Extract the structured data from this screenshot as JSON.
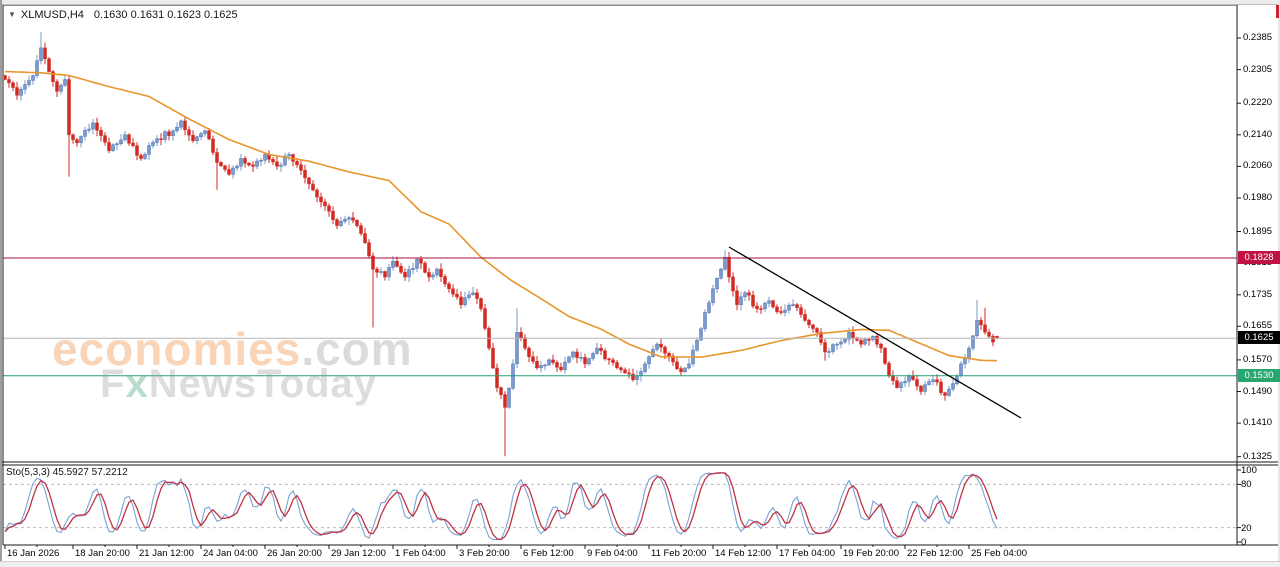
{
  "window": {
    "dropdown_marker": "▼",
    "title_symbol": "XLMUSD,H4",
    "title_quotes": "0.1630 0.1631 0.1623 0.1625"
  },
  "watermark": {
    "brand_orange": "economies",
    "brand_gray": ".com",
    "line2_f": "F",
    "line2_x": "x",
    "line2_rest": "NewsToday"
  },
  "chart_data": {
    "type": "candlestick",
    "symbol": "XLMUSD",
    "timeframe": "H4",
    "current_bar": {
      "open": 0.163,
      "high": 0.1631,
      "low": 0.1623,
      "close": 0.1625
    },
    "price_axis": {
      "ticks": [
        0.2385,
        0.2305,
        0.222,
        0.214,
        0.206,
        0.198,
        0.1895,
        0.1815,
        0.1735,
        0.1655,
        0.157,
        0.149,
        0.141,
        0.1325
      ]
    },
    "time_axis": {
      "labels": [
        "16 Jan 2026",
        "18 Jan 20:00",
        "21 Jan 12:00",
        "24 Jan 04:00",
        "26 Jan 20:00",
        "29 Jan 12:00",
        "1 Feb 04:00",
        "3 Feb 20:00",
        "6 Feb 12:00",
        "9 Feb 04:00",
        "11 Feb 20:00",
        "14 Feb 12:00",
        "17 Feb 04:00",
        "19 Feb 20:00",
        "22 Feb 12:00",
        "25 Feb 04:00"
      ],
      "label_bars": [
        0,
        17,
        33,
        49,
        65,
        81,
        97,
        113,
        129,
        145,
        161,
        177,
        193,
        209,
        225,
        241
      ]
    },
    "hlines": [
      {
        "name": "resistance",
        "price": 0.1828,
        "label": "0.1828",
        "color": "#a8123e",
        "label_bg": "#c01243"
      },
      {
        "name": "support",
        "price": 0.153,
        "label": "0.1530",
        "color": "#23a177",
        "label_bg": "#27a76f"
      },
      {
        "name": "current-price",
        "price": 0.1625,
        "label": "0.1625",
        "color": "#b5b5b5",
        "label_bg": "#000000"
      }
    ],
    "trendline": {
      "from_bar": 181,
      "from_price": 0.1856,
      "to_bar": 254,
      "to_price": 0.1423
    },
    "moving_average": {
      "keypoints": [
        [
          0,
          0.23
        ],
        [
          9,
          0.2297
        ],
        [
          16,
          0.229
        ],
        [
          26,
          0.2262
        ],
        [
          36,
          0.2237
        ],
        [
          46,
          0.218
        ],
        [
          56,
          0.2128
        ],
        [
          66,
          0.209
        ],
        [
          76,
          0.2073
        ],
        [
          86,
          0.2046
        ],
        [
          96,
          0.2024
        ],
        [
          104,
          0.1945
        ],
        [
          111,
          0.1914
        ],
        [
          119,
          0.183
        ],
        [
          126,
          0.1775
        ],
        [
          134,
          0.1725
        ],
        [
          141,
          0.168
        ],
        [
          149,
          0.1648
        ],
        [
          156,
          0.161
        ],
        [
          164,
          0.1578
        ],
        [
          174,
          0.1577
        ],
        [
          184,
          0.1594
        ],
        [
          194,
          0.1619
        ],
        [
          204,
          0.1637
        ],
        [
          214,
          0.1647
        ],
        [
          221,
          0.1645
        ],
        [
          229,
          0.1611
        ],
        [
          236,
          0.1581
        ],
        [
          244,
          0.1569
        ],
        [
          248,
          0.1568
        ]
      ]
    },
    "price_path_keypoints": [
      [
        0,
        0.228
      ],
      [
        3,
        0.224
      ],
      [
        7,
        0.229
      ],
      [
        9,
        0.236
      ],
      [
        11,
        0.23
      ],
      [
        13,
        0.225
      ],
      [
        15,
        0.228
      ],
      [
        16,
        0.214
      ],
      [
        18,
        0.212
      ],
      [
        22,
        0.217
      ],
      [
        26,
        0.21
      ],
      [
        30,
        0.214
      ],
      [
        34,
        0.208
      ],
      [
        38,
        0.213
      ],
      [
        42,
        0.215
      ],
      [
        44,
        0.2175
      ],
      [
        47,
        0.2125
      ],
      [
        50,
        0.215
      ],
      [
        53,
        0.207
      ],
      [
        56,
        0.204
      ],
      [
        59,
        0.208
      ],
      [
        62,
        0.206
      ],
      [
        65,
        0.209
      ],
      [
        68,
        0.206
      ],
      [
        71,
        0.209
      ],
      [
        74,
        0.205
      ],
      [
        77,
        0.2
      ],
      [
        80,
        0.196
      ],
      [
        83,
        0.191
      ],
      [
        86,
        0.193
      ],
      [
        89,
        0.189
      ],
      [
        92,
        0.18
      ],
      [
        95,
        0.178
      ],
      [
        97,
        0.182
      ],
      [
        100,
        0.178
      ],
      [
        103,
        0.1825
      ],
      [
        106,
        0.178
      ],
      [
        108,
        0.18
      ],
      [
        111,
        0.175
      ],
      [
        114,
        0.171
      ],
      [
        117,
        0.174
      ],
      [
        119,
        0.17
      ],
      [
        121,
        0.16
      ],
      [
        123,
        0.15
      ],
      [
        125,
        0.145
      ],
      [
        127,
        0.156
      ],
      [
        128,
        0.164
      ],
      [
        130,
        0.16
      ],
      [
        133,
        0.155
      ],
      [
        136,
        0.157
      ],
      [
        139,
        0.1545
      ],
      [
        142,
        0.159
      ],
      [
        145,
        0.156
      ],
      [
        148,
        0.16
      ],
      [
        151,
        0.157
      ],
      [
        154,
        0.1545
      ],
      [
        157,
        0.152
      ],
      [
        160,
        0.156
      ],
      [
        163,
        0.161
      ],
      [
        166,
        0.158
      ],
      [
        169,
        0.154
      ],
      [
        171,
        0.156
      ],
      [
        173,
        0.162
      ],
      [
        175,
        0.169
      ],
      [
        177,
        0.175
      ],
      [
        179,
        0.18
      ],
      [
        180,
        0.183
      ],
      [
        181,
        0.178
      ],
      [
        183,
        0.171
      ],
      [
        185,
        0.174
      ],
      [
        188,
        0.17
      ],
      [
        191,
        0.172
      ],
      [
        194,
        0.169
      ],
      [
        197,
        0.171
      ],
      [
        200,
        0.167
      ],
      [
        203,
        0.164
      ],
      [
        205,
        0.159
      ],
      [
        208,
        0.161
      ],
      [
        211,
        0.164
      ],
      [
        214,
        0.161
      ],
      [
        217,
        0.163
      ],
      [
        219,
        0.16
      ],
      [
        221,
        0.153
      ],
      [
        223,
        0.15
      ],
      [
        226,
        0.153
      ],
      [
        229,
        0.149
      ],
      [
        232,
        0.152
      ],
      [
        235,
        0.148
      ],
      [
        237,
        0.151
      ],
      [
        239,
        0.156
      ],
      [
        241,
        0.16
      ],
      [
        243,
        0.167
      ],
      [
        245,
        0.164
      ],
      [
        247,
        0.1615
      ],
      [
        248,
        0.1625
      ]
    ],
    "spikes": [
      [
        9,
        0.24,
        null
      ],
      [
        16,
        null,
        0.2034
      ],
      [
        53,
        null,
        0.2001
      ],
      [
        92,
        null,
        0.1652
      ],
      [
        103,
        0.1829,
        null
      ],
      [
        125,
        null,
        0.1326
      ],
      [
        128,
        0.1701,
        null
      ],
      [
        180,
        0.1848,
        null
      ],
      [
        205,
        null,
        0.1568
      ],
      [
        243,
        0.1722,
        null
      ],
      [
        245,
        0.1702,
        null
      ]
    ],
    "stochastic": {
      "label": "Sto(5,3,3)",
      "k_value": "45.5927",
      "d_value": "57.2212",
      "params": [
        5,
        3,
        3
      ],
      "levels": [
        80,
        20
      ],
      "axis_labels": [
        100,
        80,
        20,
        0
      ]
    },
    "colors": {
      "bull": "#7a9bd0",
      "bull_edge": "#4e6fa8",
      "bear": "#d22a23",
      "ma": "#e8962c",
      "trendline": "#000000",
      "sto_k": "#7aa2d2",
      "sto_d": "#c23145",
      "sto_level": "#bbbbbb",
      "frame": "#1a1a1a"
    }
  }
}
